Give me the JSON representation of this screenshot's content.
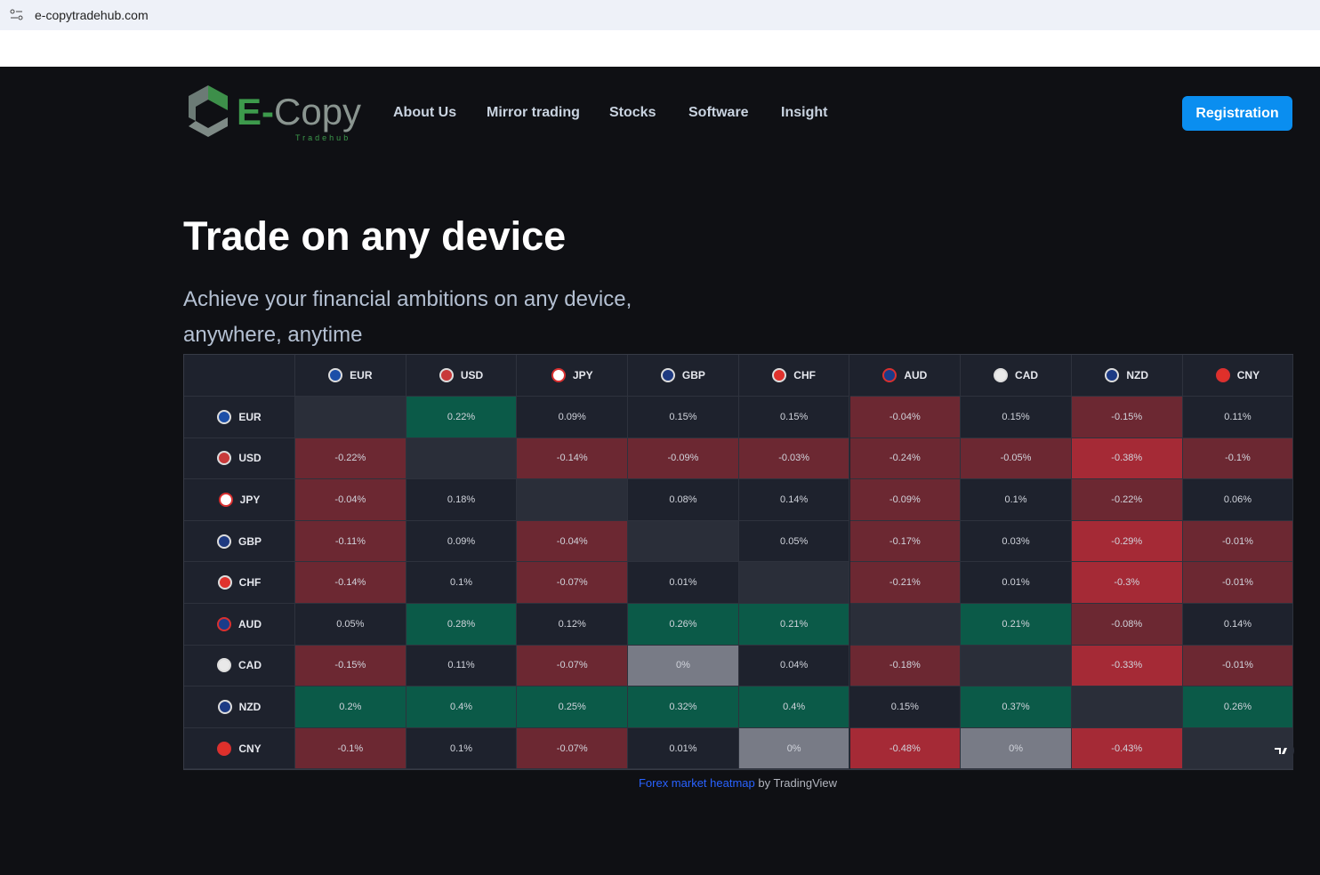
{
  "browser": {
    "url": "e-copytradehub.com"
  },
  "logo": {
    "prefix": "E-",
    "name": "Copy",
    "tagline": "Tradehub"
  },
  "nav": [
    "About Us",
    "Mirror trading",
    "Stocks",
    "Software",
    "Insight"
  ],
  "cta": "Registration",
  "hero": {
    "title": "Trade on any device",
    "subtitle_lines": [
      "Achieve your financial ambitions on any device,",
      "anywhere, anytime"
    ]
  },
  "heatmap": {
    "currencies": [
      "EUR",
      "USD",
      "JPY",
      "GBP",
      "CHF",
      "AUD",
      "CAD",
      "NZD",
      "CNY"
    ],
    "rows": [
      [
        null,
        "0.22%",
        "0.09%",
        "0.15%",
        "0.15%",
        "-0.04%",
        "0.15%",
        "-0.15%",
        "0.11%"
      ],
      [
        "-0.22%",
        null,
        "-0.14%",
        "-0.09%",
        "-0.03%",
        "-0.24%",
        "-0.05%",
        "-0.38%",
        "-0.1%"
      ],
      [
        "-0.04%",
        "0.18%",
        null,
        "0.08%",
        "0.14%",
        "-0.09%",
        "0.1%",
        "-0.22%",
        "0.06%"
      ],
      [
        "-0.11%",
        "0.09%",
        "-0.04%",
        null,
        "0.05%",
        "-0.17%",
        "0.03%",
        "-0.29%",
        "-0.01%"
      ],
      [
        "-0.14%",
        "0.1%",
        "-0.07%",
        "0.01%",
        null,
        "-0.21%",
        "0.01%",
        "-0.3%",
        "-0.01%"
      ],
      [
        "0.05%",
        "0.28%",
        "0.12%",
        "0.26%",
        "0.21%",
        null,
        "0.21%",
        "-0.08%",
        "0.14%"
      ],
      [
        "-0.15%",
        "0.11%",
        "-0.07%",
        "0%",
        "0.04%",
        "-0.18%",
        null,
        "-0.33%",
        "-0.01%"
      ],
      [
        "0.2%",
        "0.4%",
        "0.25%",
        "0.32%",
        "0.4%",
        "0.15%",
        "0.37%",
        null,
        "0.26%"
      ],
      [
        "-0.1%",
        "0.1%",
        "-0.07%",
        "0.01%",
        "0%",
        "-0.48%",
        "0%",
        "-0.43%",
        null
      ]
    ],
    "credit_link": "Forex market heatmap",
    "credit_by": "by TradingView"
  }
}
